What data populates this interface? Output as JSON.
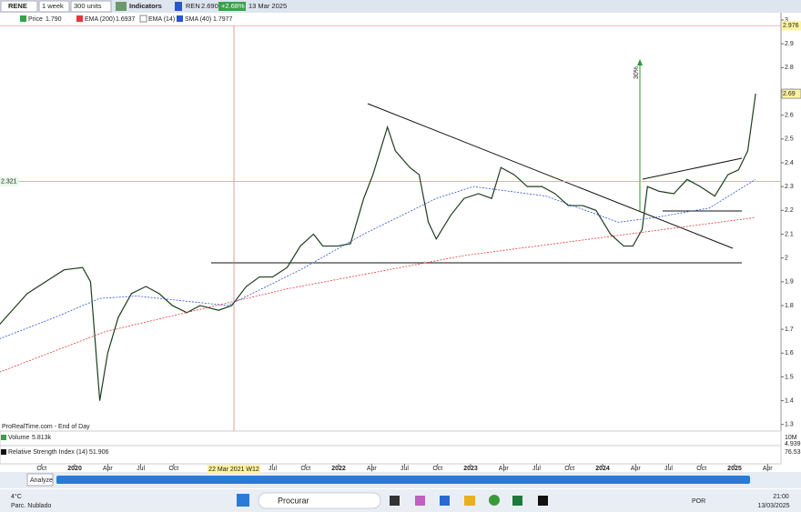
{
  "toolbar": {
    "symbol": "RENE",
    "period": "1 week",
    "units": "300 units",
    "indicators": "Indicators",
    "ticker": "REN",
    "last": "2.690",
    "change": "+2.68%",
    "date": "13 Mar 2025"
  },
  "legend": {
    "price_value": "1.790",
    "ema200_value": "1.6937",
    "ema14": "EMA (14)",
    "sma40_value": "1.7977"
  },
  "chart_data": {
    "type": "line",
    "series": [
      {
        "name": "Price",
        "color": "#1f3d1f",
        "x": [
          2019.43,
          2019.64,
          2019.78,
          2019.92,
          2020.06,
          2020.12,
          2020.19,
          2020.25,
          2020.33,
          2020.43,
          2020.54,
          2020.64,
          2020.74,
          2020.85,
          2020.95,
          2021.09,
          2021.19,
          2021.3,
          2021.4,
          2021.5,
          2021.61,
          2021.71,
          2021.81,
          2021.88,
          2021.99,
          2022.09,
          2022.19,
          2022.26,
          2022.37,
          2022.43,
          2022.54,
          2022.61,
          2022.68,
          2022.74,
          2022.85,
          2022.95,
          2023.06,
          2023.16,
          2023.23,
          2023.33,
          2023.43,
          2023.54,
          2023.64,
          2023.74,
          2023.85,
          2023.95,
          2024.06,
          2024.16,
          2024.23,
          2024.3,
          2024.34,
          2024.43,
          2024.54,
          2024.64,
          2024.74,
          2024.85,
          2024.95,
          2025.03,
          2025.1,
          2025.16
        ],
        "values": [
          1.72,
          1.85,
          1.9,
          1.95,
          1.96,
          1.9,
          1.4,
          1.6,
          1.75,
          1.85,
          1.88,
          1.85,
          1.8,
          1.77,
          1.8,
          1.78,
          1.8,
          1.88,
          1.92,
          1.92,
          1.96,
          2.05,
          2.1,
          2.05,
          2.05,
          2.06,
          2.25,
          2.35,
          2.55,
          2.45,
          2.38,
          2.35,
          2.15,
          2.08,
          2.18,
          2.25,
          2.27,
          2.25,
          2.38,
          2.35,
          2.3,
          2.3,
          2.27,
          2.22,
          2.22,
          2.2,
          2.1,
          2.05,
          2.05,
          2.12,
          2.3,
          2.28,
          2.27,
          2.33,
          2.3,
          2.26,
          2.35,
          2.37,
          2.45,
          2.69
        ]
      },
      {
        "name": "EMA (200)",
        "color": "#e03a3a",
        "x": [
          2019.43,
          2020.23,
          2021.61,
          2022.95,
          2024.33,
          2025.16
        ],
        "values": [
          1.52,
          1.69,
          1.87,
          2.01,
          2.11,
          2.17
        ]
      },
      {
        "name": "SMA (40)",
        "color": "#2a55d0",
        "x": [
          2019.43,
          2019.85,
          2020.19,
          2020.47,
          2021.16,
          2021.71,
          2022.19,
          2022.74,
          2023.02,
          2023.57,
          2024.12,
          2024.4,
          2024.81,
          2025.16
        ],
        "values": [
          1.66,
          1.75,
          1.83,
          1.84,
          1.8,
          1.95,
          2.1,
          2.25,
          2.3,
          2.26,
          2.15,
          2.17,
          2.21,
          2.33
        ]
      }
    ],
    "xlim": [
      2019.434,
      2025.352
    ],
    "xticks": [
      {
        "value": 2019.75,
        "label": "Oct"
      },
      {
        "value": 2020,
        "label": "2020"
      },
      {
        "value": 2020.25,
        "label": "Apr"
      },
      {
        "value": 2020.5,
        "label": "Jul"
      },
      {
        "value": 2020.75,
        "label": "Oct"
      },
      {
        "value": 2021.5,
        "label": "Jul"
      },
      {
        "value": 2021.75,
        "label": "Oct"
      },
      {
        "value": 2022,
        "label": "2022"
      },
      {
        "value": 2022.25,
        "label": "Apr"
      },
      {
        "value": 2022.5,
        "label": "Jul"
      },
      {
        "value": 2022.75,
        "label": "Oct"
      },
      {
        "value": 2023,
        "label": "2023"
      },
      {
        "value": 2023.25,
        "label": "Apr"
      },
      {
        "value": 2023.5,
        "label": "Jul"
      },
      {
        "value": 2023.75,
        "label": "Oct"
      },
      {
        "value": 2024,
        "label": "2024"
      },
      {
        "value": 2024.25,
        "label": "Apr"
      },
      {
        "value": 2024.5,
        "label": "Jul"
      },
      {
        "value": 2024.75,
        "label": "Oct"
      },
      {
        "value": 2025,
        "label": "2025"
      },
      {
        "value": 2025.25,
        "label": "Apr"
      }
    ],
    "ylim": [
      1.28,
      3
    ],
    "yticks": [
      1.3,
      1.4,
      1.5,
      1.6,
      1.7,
      1.8,
      1.9,
      2,
      2.1,
      2.2,
      2.3,
      2.4,
      2.5,
      2.6,
      2.7,
      2.8,
      2.9,
      3
    ],
    "reference_lines": [
      2.321,
      2.976
    ],
    "reference_colors": [
      "#7fd07f",
      "#f0a0a0"
    ],
    "last_price": 2.69,
    "crosshair_label": "22 Mar 2021 W12",
    "arrow_label": "30%",
    "source": "ProRealTime.com - End of Day"
  },
  "volume": {
    "label": "Volume",
    "value": "5.813k",
    "axis_top": "10M",
    "axis_value": "4.939"
  },
  "rsi": {
    "label": "Relative Strength Index (14)",
    "value": "51.906",
    "axis_value": "76.53"
  },
  "bottom_bar": {
    "analyze": "Analyze"
  },
  "taskbar": {
    "temperature": "4°C",
    "weather": "Parc. Nublado",
    "search": "Procurar",
    "language": "POR",
    "time": "21:00",
    "date": "13/03/2025"
  }
}
